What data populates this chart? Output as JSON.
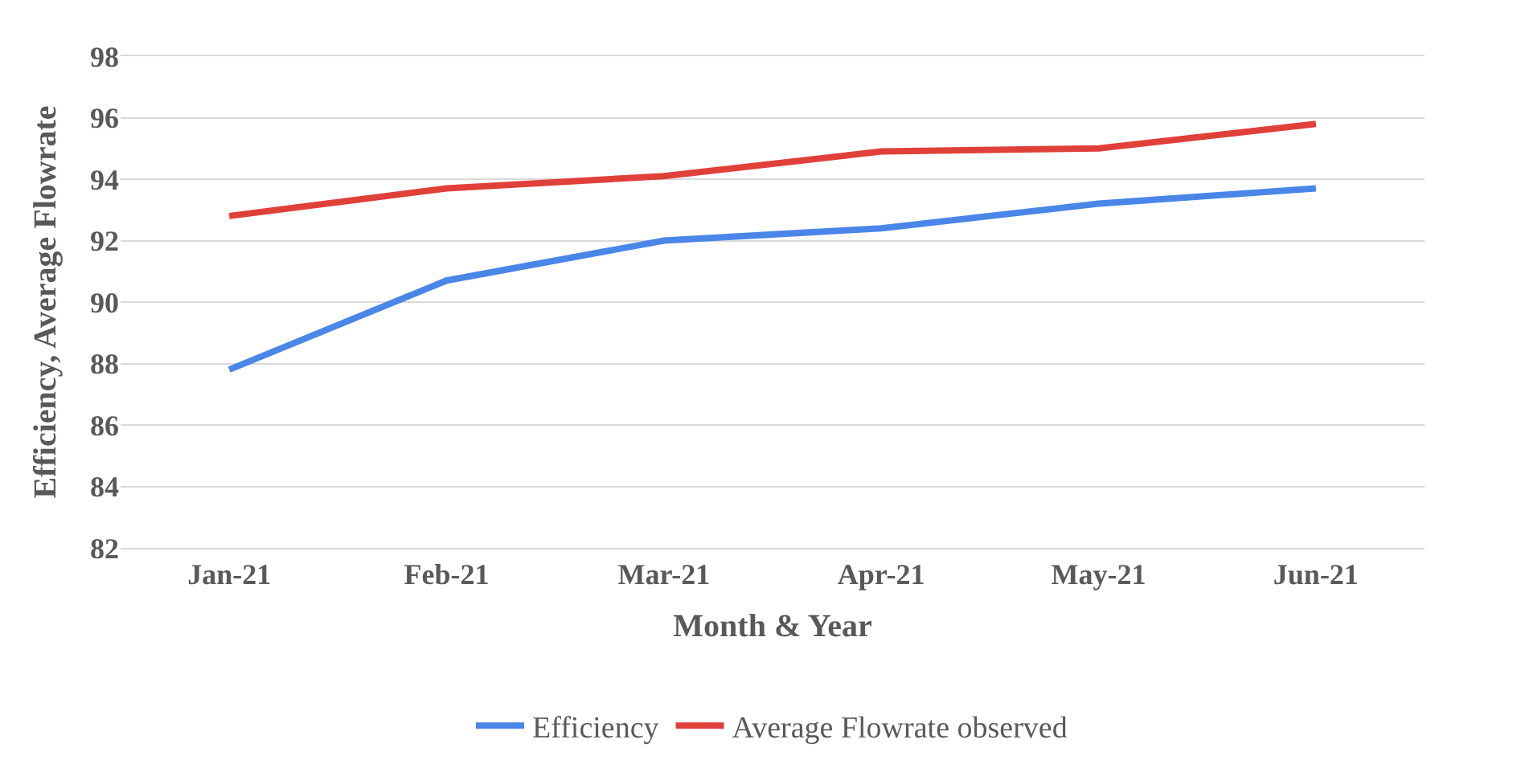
{
  "chart_data": {
    "type": "line",
    "xlabel": "Month & Year",
    "ylabel": "Efficiency, Average Flowrate",
    "categories": [
      "Jan-21",
      "Feb-21",
      "Mar-21",
      "Apr-21",
      "May-21",
      "Jun-21"
    ],
    "series": [
      {
        "name": "Efficiency",
        "color": "#4a86e8",
        "values": [
          87.8,
          90.7,
          92.0,
          92.4,
          93.2,
          93.7
        ]
      },
      {
        "name": "Average Flowrate observed",
        "color": "#e0403a",
        "values": [
          92.8,
          93.7,
          94.1,
          94.9,
          95.0,
          95.8
        ]
      }
    ],
    "ylim": [
      82,
      98
    ],
    "yticks": [
      82,
      84,
      86,
      88,
      90,
      92,
      94,
      96,
      98
    ],
    "grid": "y",
    "legend": "bottom",
    "marker": "none",
    "line_style": "solid"
  }
}
